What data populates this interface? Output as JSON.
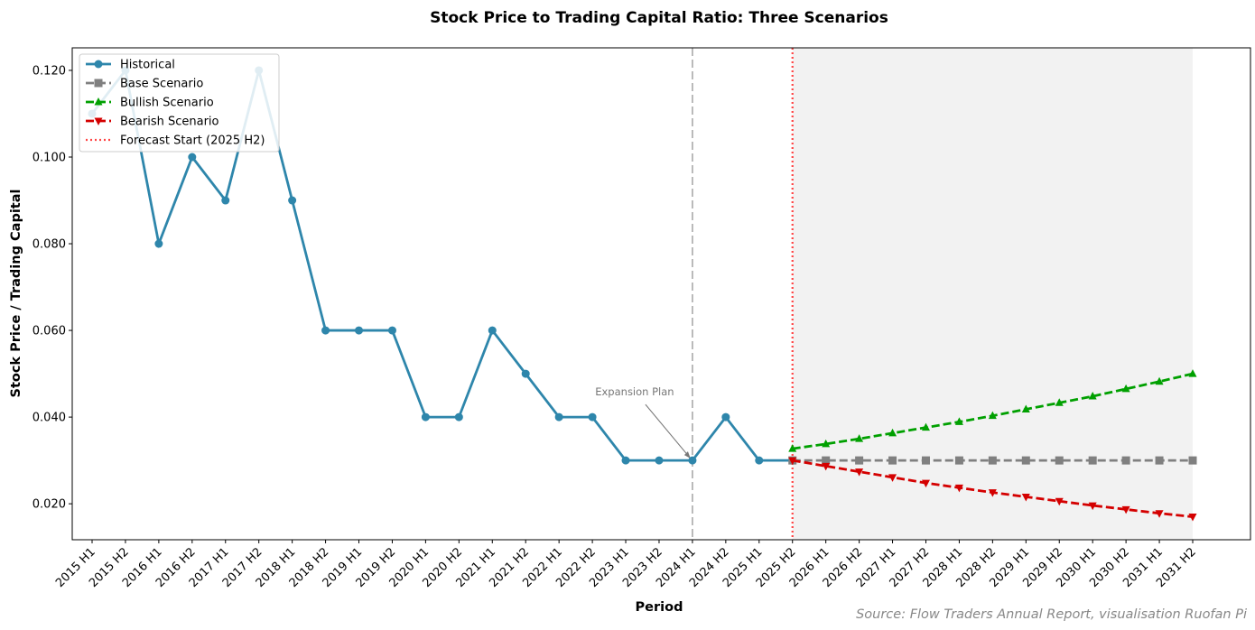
{
  "chart_data": {
    "type": "line",
    "title": "Stock Price to Trading Capital Ratio: Three Scenarios",
    "x_label": "Period",
    "y_label": "Stock Price / Trading Capital",
    "source": "Source: Flow Traders Annual Report, visualisation Ruofan Pi",
    "categories": [
      "2015 H1",
      "2015 H2",
      "2016 H1",
      "2016 H2",
      "2017 H1",
      "2017 H2",
      "2018 H1",
      "2018 H2",
      "2019 H1",
      "2019 H2",
      "2020 H1",
      "2020 H2",
      "2021 H1",
      "2021 H2",
      "2022 H1",
      "2022 H2",
      "2023 H1",
      "2023 H2",
      "2024 H1",
      "2024 H2",
      "2025 H1",
      "2025 H2",
      "2026 H1",
      "2026 H2",
      "2027 H1",
      "2027 H2",
      "2028 H1",
      "2028 H2",
      "2029 H1",
      "2029 H2",
      "2030 H1",
      "2030 H2",
      "2031 H1",
      "2031 H2"
    ],
    "series": [
      {
        "name": "Historical",
        "color": "#2e86ab",
        "marker": "circle",
        "dash": "solid",
        "values": [
          0.11,
          0.12,
          0.08,
          0.1,
          0.09,
          0.12,
          0.09,
          0.06,
          0.06,
          0.06,
          0.04,
          0.04,
          0.06,
          0.05,
          0.04,
          0.04,
          0.03,
          0.03,
          0.03,
          0.04,
          0.03,
          0.03,
          null,
          null,
          null,
          null,
          null,
          null,
          null,
          null,
          null,
          null,
          null,
          null
        ]
      },
      {
        "name": "Base Scenario",
        "color": "#808080",
        "marker": "square",
        "dash": "dashed",
        "values": [
          null,
          null,
          null,
          null,
          null,
          null,
          null,
          null,
          null,
          null,
          null,
          null,
          null,
          null,
          null,
          null,
          null,
          null,
          null,
          null,
          null,
          0.03,
          0.03,
          0.03,
          0.03,
          0.03,
          0.03,
          0.03,
          0.03,
          0.03,
          0.03,
          0.03,
          0.03,
          0.03
        ]
      },
      {
        "name": "Bullish Scenario",
        "color": "#00a000",
        "marker": "triangle-up",
        "dash": "dashed",
        "values": [
          null,
          null,
          null,
          null,
          null,
          null,
          null,
          null,
          null,
          null,
          null,
          null,
          null,
          null,
          null,
          null,
          null,
          null,
          null,
          null,
          null,
          0.0327,
          0.0338,
          0.035,
          0.0363,
          0.0376,
          0.0389,
          0.0403,
          0.0418,
          0.0433,
          0.0448,
          0.0465,
          0.0482,
          0.05
        ]
      },
      {
        "name": "Bearish Scenario",
        "color": "#d40000",
        "marker": "triangle-down",
        "dash": "dashed",
        "values": [
          null,
          null,
          null,
          null,
          null,
          null,
          null,
          null,
          null,
          null,
          null,
          null,
          null,
          null,
          null,
          null,
          null,
          null,
          null,
          null,
          null,
          0.03,
          0.0287,
          0.0274,
          0.0261,
          0.0248,
          0.0237,
          0.0226,
          0.0216,
          0.0206,
          0.0196,
          0.0187,
          0.0178,
          0.017
        ]
      }
    ],
    "vlines": [
      {
        "x": "2024 H1",
        "color": "#aaaaaa",
        "style": "dashed"
      },
      {
        "name": "Forecast Start (2025 H2)",
        "x": "2025 H2",
        "color": "#ff4444",
        "style": "dotted"
      }
    ],
    "shade": {
      "from": "2025 H2",
      "to": "2031 H2",
      "color": "#f2f2f2"
    },
    "annotation": {
      "text": "Expansion Plan",
      "x": "2024 H1",
      "y": 0.03
    },
    "ylim": [
      0.0117,
      0.1252
    ],
    "yticks": [
      {
        "value": 0.02,
        "label": "0.020"
      },
      {
        "value": 0.04,
        "label": "0.040"
      },
      {
        "value": 0.06,
        "label": "0.060"
      },
      {
        "value": 0.08,
        "label": "0.080"
      },
      {
        "value": 0.1,
        "label": "0.100"
      },
      {
        "value": 0.12,
        "label": "0.120"
      }
    ],
    "legend": "upper left",
    "grid": false
  }
}
